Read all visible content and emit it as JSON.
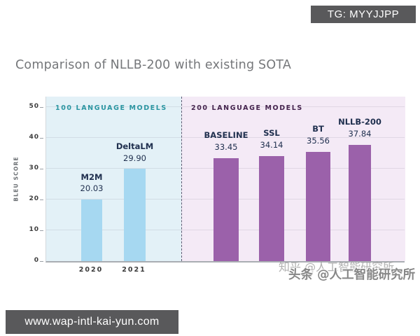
{
  "badge": {
    "label": "TG: MYYJJPP"
  },
  "page_title": "Comparison of NLLB-200 with existing SOTA",
  "watermarks": {
    "back": "知乎 @人工智能研究所",
    "front": "头条 @人工智能研究所"
  },
  "footer": {
    "url": "www.wap-intl-kai-yun.com"
  },
  "chart_data": {
    "type": "bar",
    "title": "Comparison of NLLB-200 with existing SOTA",
    "ylabel": "BLEU SCORE",
    "ylim": [
      0,
      50
    ],
    "yticks": [
      0,
      10,
      20,
      30,
      40,
      50
    ],
    "grid": true,
    "legend": "none",
    "value_label_color": "#20304f",
    "axis_color": "#9aa0a6",
    "sections": [
      {
        "label": "100 LANGUAGE MODELS",
        "background": "#e3f1f7",
        "label_color": "#2b97a3",
        "bar_color": "#a6d8f1",
        "bars": [
          {
            "name": "M2M",
            "value": 20.03,
            "x_tick": "2020"
          },
          {
            "name": "DeltaLM",
            "value": 29.9,
            "x_tick": "2021"
          }
        ]
      },
      {
        "label": "200 LANGUAGE MODELS",
        "background": "#f4eaf6",
        "label_color": "#45234e",
        "bar_color": "#9b61aa",
        "bars": [
          {
            "name": "BASELINE",
            "value": 33.45
          },
          {
            "name": "SSL",
            "value": 34.14
          },
          {
            "name": "BT",
            "value": 35.56
          },
          {
            "name": "NLLB-200",
            "value": 37.84
          }
        ]
      }
    ]
  }
}
